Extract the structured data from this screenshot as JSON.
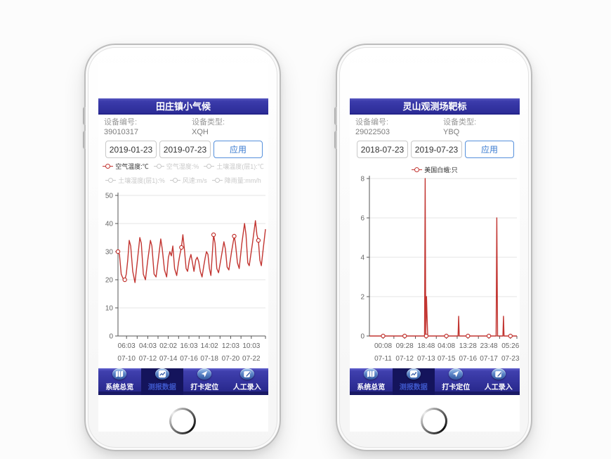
{
  "colors": {
    "header_blue": "#3434a2",
    "nav_blue": "#34349e",
    "nav_active_bg": "#14145c",
    "nav_active_text": "#3d56c8",
    "accent_blue": "#3a7bd0",
    "series_red": "#c23531",
    "inactive_gray": "#c9c9c9"
  },
  "phones": [
    {
      "title": "田庄镇小气候",
      "device_number_label": "设备编号:",
      "device_number": "39010317",
      "device_type_label": "设备类型:",
      "device_type": "XQH",
      "start_date": "2019-01-23",
      "end_date": "2019-07-23",
      "apply_label": "应用",
      "legend": [
        {
          "label": "空气温度:℃",
          "active": true
        },
        {
          "label": "空气湿度:%",
          "active": false
        },
        {
          "label": "土壤温度(层1):℃",
          "active": false
        },
        {
          "label": "土壤湿度(层1):%",
          "active": false
        },
        {
          "label": "风速:m/s",
          "active": false
        },
        {
          "label": "降雨量:mm/h",
          "active": false
        }
      ],
      "nav": [
        {
          "label": "系统总览",
          "icon": "map-icon",
          "active": false
        },
        {
          "label": "测报数据",
          "icon": "chart-icon",
          "active": true
        },
        {
          "label": "打卡定位",
          "icon": "locate-icon",
          "active": false
        },
        {
          "label": "人工录入",
          "icon": "edit-icon",
          "active": false
        }
      ]
    },
    {
      "title": "灵山观测场靶标",
      "device_number_label": "设备编号:",
      "device_number": "29022503",
      "device_type_label": "设备类型:",
      "device_type": "YBQ",
      "start_date": "2018-07-23",
      "end_date": "2019-07-23",
      "apply_label": "应用",
      "legend": [
        {
          "label": "美国白蛾:只",
          "active": true
        }
      ],
      "nav": [
        {
          "label": "系统总览",
          "icon": "map-icon",
          "active": false
        },
        {
          "label": "测报数据",
          "icon": "chart-icon",
          "active": true
        },
        {
          "label": "打卡定位",
          "icon": "locate-icon",
          "active": false
        },
        {
          "label": "人工录入",
          "icon": "edit-icon",
          "active": false
        }
      ]
    }
  ],
  "chart_data": [
    {
      "type": "line",
      "title": "空气温度:℃",
      "legend_position": "top",
      "grid": true,
      "ylim": [
        0,
        50
      ],
      "yticks": [
        0,
        10,
        20,
        30,
        40,
        50
      ],
      "xticks": [
        {
          "time": "06:03",
          "date": "07-10",
          "frac": 0.058
        },
        {
          "time": "04:03",
          "date": "07-12",
          "frac": 0.202
        },
        {
          "time": "02:02",
          "date": "07-14",
          "frac": 0.341
        },
        {
          "time": "16:03",
          "date": "07-16",
          "frac": 0.481
        },
        {
          "time": "14:02",
          "date": "07-18",
          "frac": 0.62
        },
        {
          "time": "12:03",
          "date": "07-20",
          "frac": 0.764
        },
        {
          "time": "10:03",
          "date": "07-22",
          "frac": 0.904
        }
      ],
      "series": [
        {
          "name": "空气温度:℃",
          "color": "#c23531",
          "points": [
            [
              0,
              30
            ],
            [
              0.01,
              29
            ],
            [
              0.022,
              22
            ],
            [
              0.034,
              20.5
            ],
            [
              0.046,
              20
            ],
            [
              0.056,
              22
            ],
            [
              0.066,
              27
            ],
            [
              0.076,
              34
            ],
            [
              0.086,
              32
            ],
            [
              0.1,
              23
            ],
            [
              0.115,
              19
            ],
            [
              0.13,
              26
            ],
            [
              0.148,
              35
            ],
            [
              0.158,
              33
            ],
            [
              0.172,
              22
            ],
            [
              0.186,
              20
            ],
            [
              0.202,
              27
            ],
            [
              0.22,
              34
            ],
            [
              0.23,
              32
            ],
            [
              0.245,
              22
            ],
            [
              0.258,
              21
            ],
            [
              0.275,
              28
            ],
            [
              0.29,
              34.5
            ],
            [
              0.3,
              31
            ],
            [
              0.315,
              23.5
            ],
            [
              0.33,
              21
            ],
            [
              0.342,
              28
            ],
            [
              0.352,
              30
            ],
            [
              0.362,
              28.5
            ],
            [
              0.372,
              32
            ],
            [
              0.384,
              24
            ],
            [
              0.398,
              21.5
            ],
            [
              0.41,
              26
            ],
            [
              0.42,
              29
            ],
            [
              0.43,
              31.5
            ],
            [
              0.44,
              36
            ],
            [
              0.45,
              31
            ],
            [
              0.462,
              24
            ],
            [
              0.472,
              23
            ],
            [
              0.484,
              27
            ],
            [
              0.495,
              29
            ],
            [
              0.505,
              26
            ],
            [
              0.515,
              23
            ],
            [
              0.527,
              27
            ],
            [
              0.537,
              28
            ],
            [
              0.547,
              26.5
            ],
            [
              0.558,
              23
            ],
            [
              0.57,
              21
            ],
            [
              0.582,
              25
            ],
            [
              0.592,
              28
            ],
            [
              0.6,
              30
            ],
            [
              0.61,
              29
            ],
            [
              0.62,
              24
            ],
            [
              0.63,
              21.5
            ],
            [
              0.638,
              28
            ],
            [
              0.648,
              36
            ],
            [
              0.658,
              33
            ],
            [
              0.67,
              24
            ],
            [
              0.682,
              22.5
            ],
            [
              0.7,
              28
            ],
            [
              0.718,
              33.5
            ],
            [
              0.728,
              31
            ],
            [
              0.74,
              24.5
            ],
            [
              0.752,
              23.5
            ],
            [
              0.77,
              30
            ],
            [
              0.788,
              35.5
            ],
            [
              0.796,
              33
            ],
            [
              0.81,
              26
            ],
            [
              0.822,
              24
            ],
            [
              0.84,
              33
            ],
            [
              0.858,
              40
            ],
            [
              0.868,
              36
            ],
            [
              0.88,
              26
            ],
            [
              0.89,
              25
            ],
            [
              0.912,
              33
            ],
            [
              0.932,
              41
            ],
            [
              0.942,
              36
            ],
            [
              0.952,
              34
            ],
            [
              0.962,
              27
            ],
            [
              0.972,
              25
            ],
            [
              0.985,
              31
            ],
            [
              1,
              38
            ]
          ],
          "markers": [
            [
              0,
              30
            ],
            [
              0.046,
              20
            ],
            [
              0.43,
              31.5
            ],
            [
              0.648,
              36
            ],
            [
              0.788,
              35.5
            ],
            [
              0.952,
              34
            ]
          ]
        }
      ]
    },
    {
      "type": "line",
      "title": "美国白蛾:只",
      "legend_position": "top",
      "grid": true,
      "ylim": [
        0,
        8
      ],
      "yticks": [
        0,
        2,
        4,
        6,
        8
      ],
      "xticks": [
        {
          "time": "00:08",
          "date": "07-11",
          "frac": 0.093
        },
        {
          "time": "09:28",
          "date": "07-12",
          "frac": 0.239
        },
        {
          "time": "18:48",
          "date": "07-13",
          "frac": 0.385
        },
        {
          "time": "04:08",
          "date": "07-15",
          "frac": 0.522
        },
        {
          "time": "13:28",
          "date": "07-16",
          "frac": 0.668
        },
        {
          "time": "23:48",
          "date": "07-17",
          "frac": 0.81
        },
        {
          "time": "05:26",
          "date": "07-23",
          "frac": 0.956
        }
      ],
      "series": [
        {
          "name": "美国白蛾:只",
          "color": "#c23531",
          "points": [
            [
              0,
              0
            ],
            [
              0.05,
              0
            ],
            [
              0.093,
              0
            ],
            [
              0.16,
              0
            ],
            [
              0.239,
              0
            ],
            [
              0.3,
              0
            ],
            [
              0.374,
              0
            ],
            [
              0.378,
              8
            ],
            [
              0.382,
              0
            ],
            [
              0.387,
              2
            ],
            [
              0.391,
              1
            ],
            [
              0.395,
              0
            ],
            [
              0.45,
              0
            ],
            [
              0.522,
              0
            ],
            [
              0.59,
              0
            ],
            [
              0.601,
              0
            ],
            [
              0.605,
              1
            ],
            [
              0.609,
              0
            ],
            [
              0.668,
              0
            ],
            [
              0.74,
              0
            ],
            [
              0.81,
              0
            ],
            [
              0.859,
              0
            ],
            [
              0.864,
              6
            ],
            [
              0.869,
              0
            ],
            [
              0.905,
              0
            ],
            [
              0.909,
              1
            ],
            [
              0.913,
              0
            ],
            [
              0.956,
              0
            ],
            [
              1,
              0
            ]
          ],
          "markers": [
            [
              0.093,
              0
            ],
            [
              0.239,
              0
            ],
            [
              0.385,
              0
            ],
            [
              0.522,
              0
            ],
            [
              0.668,
              0
            ],
            [
              0.81,
              0
            ],
            [
              0.956,
              0
            ]
          ]
        }
      ]
    }
  ]
}
